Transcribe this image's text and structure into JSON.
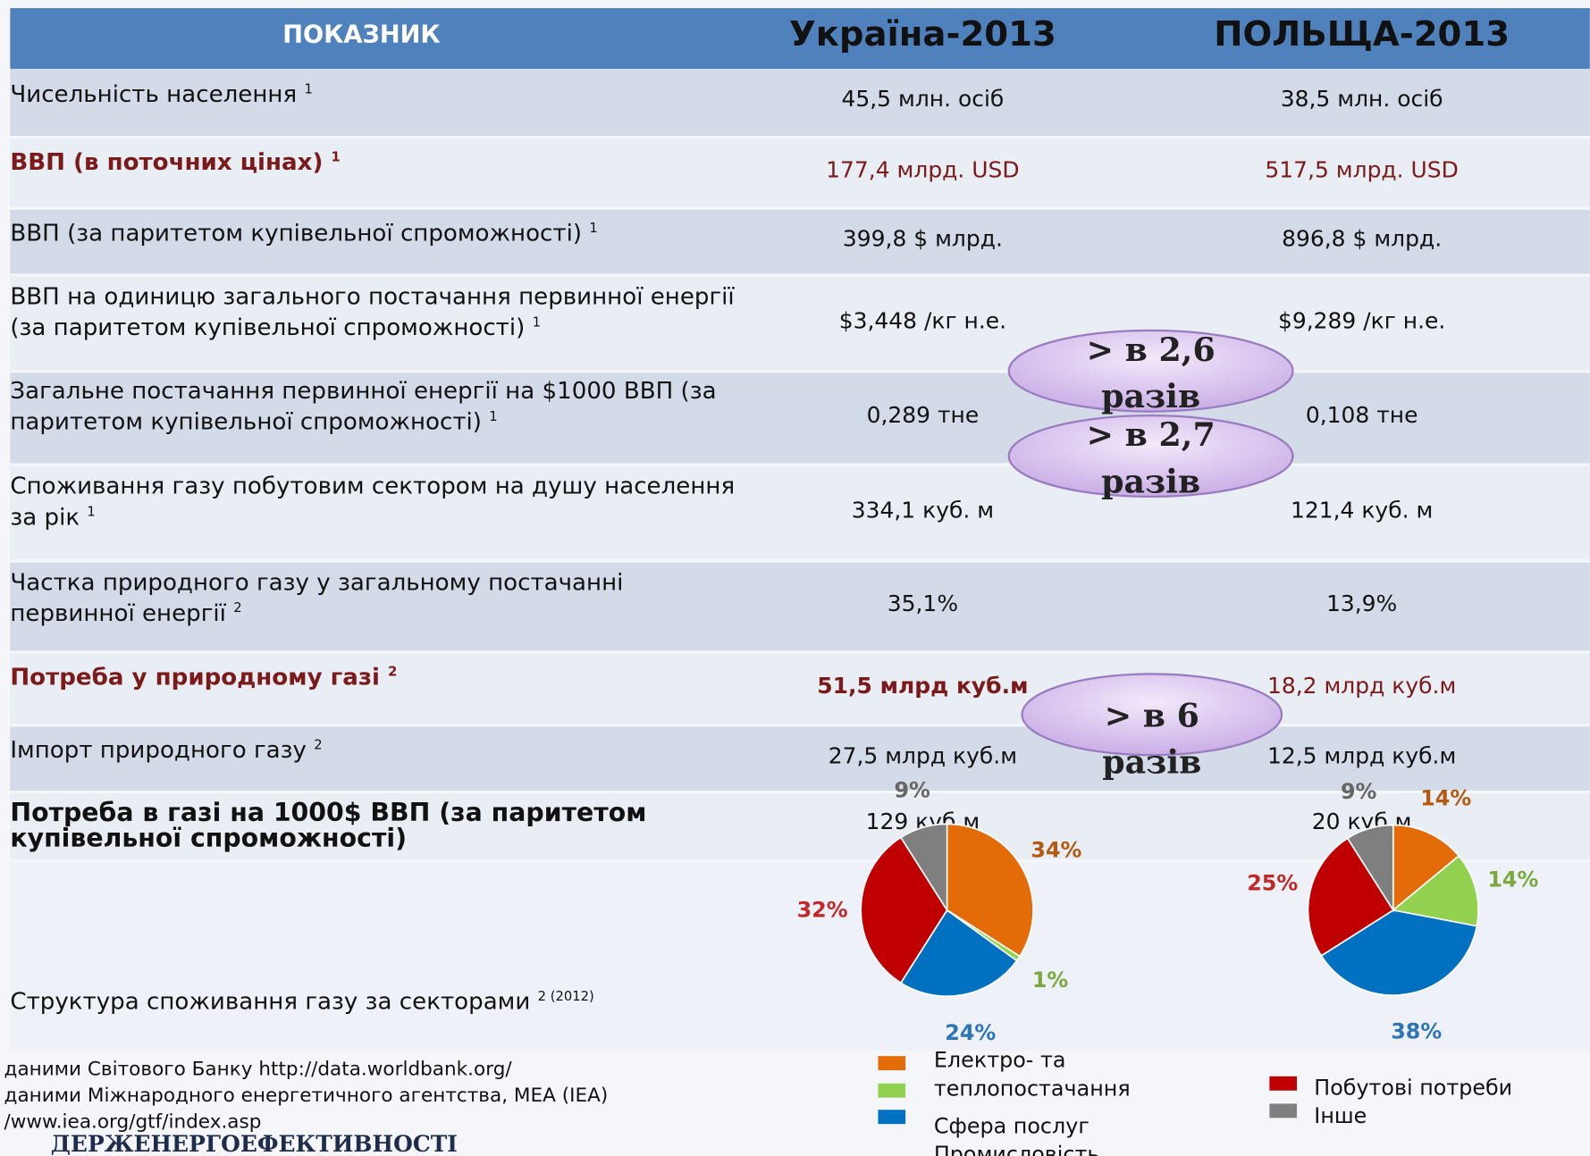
{
  "header": {
    "indicator": "ПОКАЗНИК",
    "ukraine": "Україна-2013",
    "poland": "ПОЛЬЩА-2013"
  },
  "table": {
    "rows": [
      {
        "label": "Чисельність населення",
        "note": "1",
        "ukraine": "45,5 млн. осіб",
        "poland": "38,5 млн. осіб"
      },
      {
        "label": "ВВП (в поточних цінах)",
        "note": "1",
        "ukraine": "177,4 млрд. USD",
        "poland": "517,5 млрд. USD"
      },
      {
        "label": "ВВП (за паритетом купівельної спроможності)",
        "note": "1",
        "ukraine": "399,8 $ млрд.",
        "poland": "896,8 $ млрд."
      },
      {
        "label": "ВВП на одиницю загального постачання первинної енергії (за паритетом купівельної спроможності)",
        "note": "1",
        "ukraine": "$3,448 /кг н.е.",
        "poland": "$9,289 /кг н.е."
      },
      {
        "label": "Загальне постачання первинної енергії на $1000 ВВП (за паритетом купівельної спроможності)",
        "note": "1",
        "ukraine": "0,289 тне",
        "poland": "0,108 тне"
      },
      {
        "label": "Споживання газу побутовим сектором на душу населення за рік",
        "note": "1",
        "ukraine": "334,1 куб. м",
        "poland": "121,4 куб. м"
      },
      {
        "label": "Частка природного газу у загальному постачанні первинної енергії",
        "note": "2",
        "ukraine": "35,1%",
        "poland": "13,9%"
      },
      {
        "label": "Потреба у природному газі",
        "note": "2",
        "ukraine": "51,5 млрд куб.м",
        "poland": "18,2 млрд куб.м"
      },
      {
        "label": "Імпорт природного газу",
        "note": "2",
        "ukraine": "27,5 млрд куб.м",
        "poland": "12,5 млрд куб.м"
      },
      {
        "label": "Потреба в газі на 1000$ ВВП (за паритетом купівельної спроможності)",
        "ukraine": "129 куб.м",
        "poland": "20 куб.м"
      },
      {
        "label": "Структура споживання газу за секторами",
        "note": "2 (2012)"
      }
    ]
  },
  "callouts": [
    "> в 2,6 разів",
    "> в 2,7 разів",
    "> в 6 разів"
  ],
  "pies": [
    {
      "values": [
        34,
        1,
        24,
        32,
        9
      ],
      "value_labels": [
        "34%",
        "1%",
        "24%",
        "32%",
        "9%"
      ]
    },
    {
      "values": [
        14,
        14,
        38,
        25,
        9
      ],
      "value_labels": [
        "14%",
        "14%",
        "38%",
        "25%",
        "9%"
      ]
    }
  ],
  "legend": {
    "names": [
      "Електро- та теплопостачання",
      "Сфера послуг",
      "Промисловість",
      "Побутові потреби",
      "Інше"
    ],
    "colors": [
      "#e36c09",
      "#92d050",
      "#0070c0",
      "#c00000",
      "#7f7f7f"
    ]
  },
  "footnotes": [
    "даними Світового Банку http://data.worldbank.org/",
    "даними Міжнародного енергетичного агентства, МЕА (IEA)",
    "/www.iea.org/gtf/index.asp"
  ],
  "logo": "ДЕРЖЕНЕРГОЕФЕКТИВНОСТІ"
}
